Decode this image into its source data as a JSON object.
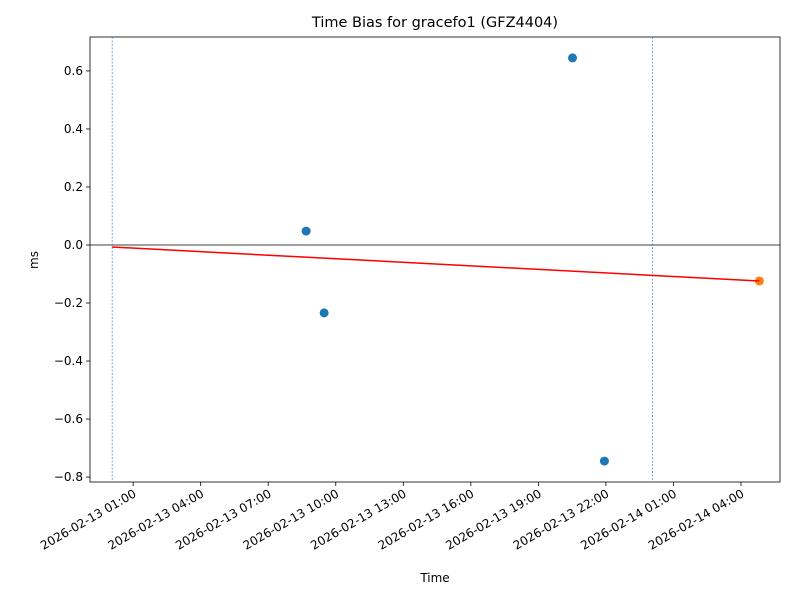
{
  "chart_data": {
    "type": "scatter",
    "title": "Time Bias for gracefo1 (GFZ4404)",
    "x_label": "Time",
    "y_label": "ms",
    "xlim": [
      "2026-02-12 23:05",
      "2026-02-14 05:44"
    ],
    "xticks": [
      "2026-02-13 01:00",
      "2026-02-13 04:00",
      "2026-02-13 07:00",
      "2026-02-13 10:00",
      "2026-02-13 13:00",
      "2026-02-13 16:00",
      "2026-02-13 19:00",
      "2026-02-13 22:00",
      "2026-02-14 01:00",
      "2026-02-14 04:00"
    ],
    "ylim": [
      -0.817,
      0.717
    ],
    "yticks": [
      {
        "value": -0.8,
        "label": "−0.8"
      },
      {
        "value": -0.6,
        "label": "−0.6"
      },
      {
        "value": -0.4,
        "label": "−0.4"
      },
      {
        "value": -0.2,
        "label": "−0.2"
      },
      {
        "value": 0,
        "label": "0.0"
      },
      0.2,
      0.4,
      0.6
    ],
    "hline": 0,
    "hline_color": "#000000",
    "vlines": [
      "2026-02-13 00:04",
      "2026-02-14 00:04"
    ],
    "vline_color": "#1f77b4",
    "series": [
      {
        "style": "points",
        "color": "#1f77b4",
        "x": [
          "2026-02-13 08:41",
          "2026-02-13 09:29",
          "2026-02-13 20:31",
          "2026-02-13 21:56"
        ],
        "values": [
          0.048,
          -0.234,
          0.645,
          -0.745
        ]
      },
      {
        "style": "points",
        "color": "#ff7f0e",
        "x": [
          "2026-02-14 04:49"
        ],
        "values": [
          -0.124
        ]
      },
      {
        "style": "line",
        "color": "#ff0000",
        "x": [
          "2026-02-13 00:04",
          "2026-02-14 04:49"
        ],
        "values": [
          -0.007,
          -0.124
        ]
      }
    ]
  }
}
